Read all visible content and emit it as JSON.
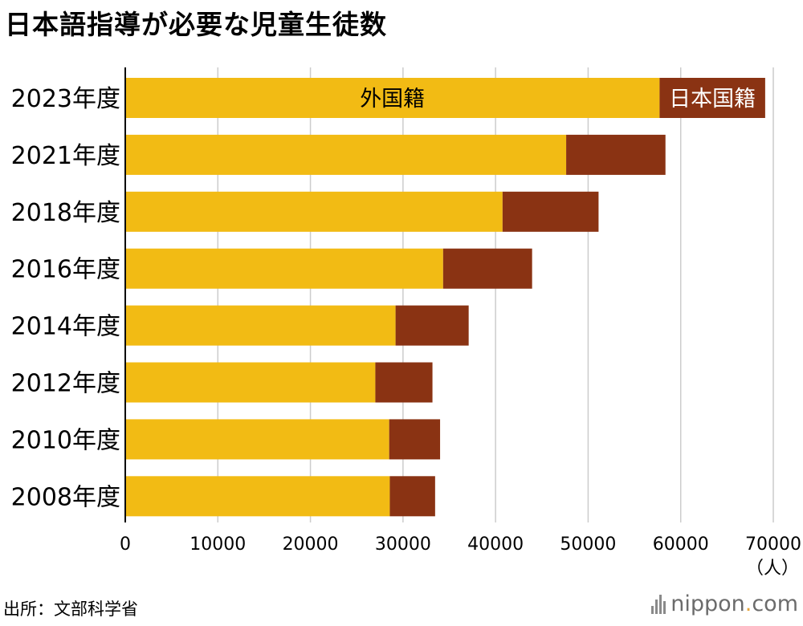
{
  "title": "日本語指導が必要な児童生徒数",
  "source": "出所：文部科学省",
  "brand": {
    "name": "nippon",
    "dot": ".",
    "suffix": "com"
  },
  "colors": {
    "foreign": "#F2BB14",
    "japanese": "#8A3313",
    "grid": "#cccccc",
    "axis": "#000000"
  },
  "chart_data": {
    "type": "bar",
    "orientation": "horizontal",
    "stacked": true,
    "title": "日本語指導が必要な児童生徒数",
    "unit_label": "（人）",
    "categories": [
      "2023年度",
      "2021年度",
      "2018年度",
      "2016年度",
      "2014年度",
      "2012年度",
      "2010年度",
      "2008年度"
    ],
    "series": [
      {
        "name": "外国籍",
        "values": [
          57718,
          47627,
          40755,
          34335,
          29198,
          27013,
          28511,
          28575
        ]
      },
      {
        "name": "日本国籍",
        "values": [
          11405,
          10726,
          10371,
          9612,
          7897,
          6171,
          5496,
          4895
        ]
      }
    ],
    "xlim": [
      0,
      70000
    ],
    "xticks": [
      "0",
      "10000",
      "20000",
      "30000",
      "40000",
      "50000",
      "60000",
      "70000"
    ],
    "grid": true,
    "inline_labels": {
      "foreign": "外国籍",
      "japanese": "日本国籍"
    }
  }
}
